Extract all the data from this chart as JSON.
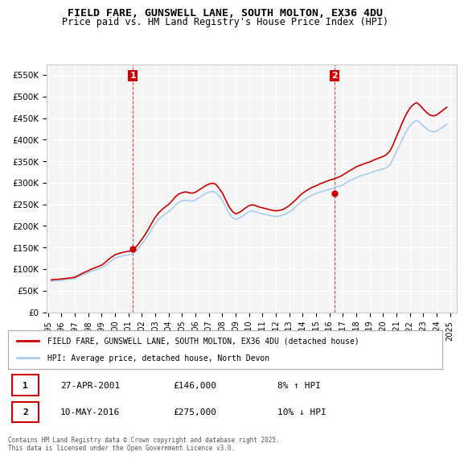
{
  "title_line1": "FIELD FARE, GUNSWELL LANE, SOUTH MOLTON, EX36 4DU",
  "title_line2": "Price paid vs. HM Land Registry's House Price Index (HPI)",
  "xlabel": "",
  "ylabel": "",
  "ylim": [
    0,
    575000
  ],
  "yticks": [
    0,
    50000,
    100000,
    150000,
    200000,
    250000,
    300000,
    350000,
    400000,
    450000,
    500000,
    550000
  ],
  "ytick_labels": [
    "£0",
    "£50K",
    "£100K",
    "£150K",
    "£200K",
    "£250K",
    "£300K",
    "£350K",
    "£400K",
    "£450K",
    "£500K",
    "£550K"
  ],
  "xtick_years": [
    1995,
    1996,
    1997,
    1998,
    1999,
    2000,
    2001,
    2002,
    2003,
    2004,
    2005,
    2006,
    2007,
    2008,
    2009,
    2010,
    2011,
    2012,
    2013,
    2014,
    2015,
    2016,
    2017,
    2018,
    2019,
    2020,
    2021,
    2022,
    2023,
    2024,
    2025
  ],
  "background_color": "#ffffff",
  "plot_background": "#f5f5f5",
  "grid_color": "#ffffff",
  "line1_color": "#cc0000",
  "line2_color": "#aaccee",
  "marker1_x": 2001.33,
  "marker1_y": 146000,
  "marker2_x": 2016.37,
  "marker2_y": 275000,
  "legend_label1": "FIELD FARE, GUNSWELL LANE, SOUTH MOLTON, EX36 4DU (detached house)",
  "legend_label2": "HPI: Average price, detached house, North Devon",
  "sale1_label": "1",
  "sale1_date": "27-APR-2001",
  "sale1_price": "£146,000",
  "sale1_hpi": "8% ↑ HPI",
  "sale2_label": "2",
  "sale2_date": "10-MAY-2016",
  "sale2_price": "£275,000",
  "sale2_hpi": "10% ↓ HPI",
  "footer": "Contains HM Land Registry data © Crown copyright and database right 2025.\nThis data is licensed under the Open Government Licence v3.0.",
  "hpi_data_x": [
    1995.25,
    1995.5,
    1995.75,
    1996.0,
    1996.25,
    1996.5,
    1996.75,
    1997.0,
    1997.25,
    1997.5,
    1997.75,
    1998.0,
    1998.25,
    1998.5,
    1998.75,
    1999.0,
    1999.25,
    1999.5,
    1999.75,
    2000.0,
    2000.25,
    2000.5,
    2000.75,
    2001.0,
    2001.25,
    2001.5,
    2001.75,
    2002.0,
    2002.25,
    2002.5,
    2002.75,
    2003.0,
    2003.25,
    2003.5,
    2003.75,
    2004.0,
    2004.25,
    2004.5,
    2004.75,
    2005.0,
    2005.25,
    2005.5,
    2005.75,
    2006.0,
    2006.25,
    2006.5,
    2006.75,
    2007.0,
    2007.25,
    2007.5,
    2007.75,
    2008.0,
    2008.25,
    2008.5,
    2008.75,
    2009.0,
    2009.25,
    2009.5,
    2009.75,
    2010.0,
    2010.25,
    2010.5,
    2010.75,
    2011.0,
    2011.25,
    2011.5,
    2011.75,
    2012.0,
    2012.25,
    2012.5,
    2012.75,
    2013.0,
    2013.25,
    2013.5,
    2013.75,
    2014.0,
    2014.25,
    2014.5,
    2014.75,
    2015.0,
    2015.25,
    2015.5,
    2015.75,
    2016.0,
    2016.25,
    2016.5,
    2016.75,
    2017.0,
    2017.25,
    2017.5,
    2017.75,
    2018.0,
    2018.25,
    2018.5,
    2018.75,
    2019.0,
    2019.25,
    2019.5,
    2019.75,
    2020.0,
    2020.25,
    2020.5,
    2020.75,
    2021.0,
    2021.25,
    2021.5,
    2021.75,
    2022.0,
    2022.25,
    2022.5,
    2022.75,
    2023.0,
    2023.25,
    2023.5,
    2023.75,
    2024.0,
    2024.25,
    2024.5,
    2024.75
  ],
  "hpi_data_y": [
    72000,
    73000,
    73500,
    74000,
    75000,
    76000,
    77000,
    78000,
    82000,
    86000,
    89000,
    92000,
    95000,
    98000,
    100000,
    103000,
    108000,
    114000,
    120000,
    125000,
    128000,
    130000,
    132000,
    133000,
    135000,
    140000,
    148000,
    158000,
    168000,
    180000,
    193000,
    205000,
    215000,
    222000,
    228000,
    233000,
    240000,
    248000,
    255000,
    258000,
    260000,
    258000,
    258000,
    260000,
    265000,
    270000,
    275000,
    278000,
    280000,
    278000,
    270000,
    260000,
    245000,
    230000,
    220000,
    215000,
    218000,
    222000,
    228000,
    233000,
    235000,
    233000,
    230000,
    228000,
    227000,
    225000,
    223000,
    222000,
    223000,
    225000,
    228000,
    232000,
    238000,
    245000,
    252000,
    258000,
    263000,
    268000,
    272000,
    275000,
    278000,
    280000,
    283000,
    285000,
    287000,
    290000,
    292000,
    295000,
    300000,
    305000,
    308000,
    312000,
    315000,
    318000,
    320000,
    322000,
    325000,
    328000,
    330000,
    332000,
    335000,
    342000,
    355000,
    372000,
    388000,
    405000,
    420000,
    432000,
    440000,
    445000,
    440000,
    432000,
    425000,
    420000,
    418000,
    420000,
    425000,
    430000,
    435000
  ],
  "price_data_x": [
    1995.25,
    1995.5,
    1995.75,
    1996.0,
    1996.25,
    1996.5,
    1996.75,
    1997.0,
    1997.25,
    1997.5,
    1997.75,
    1998.0,
    1998.25,
    1998.5,
    1998.75,
    1999.0,
    1999.25,
    1999.5,
    1999.75,
    2000.0,
    2000.25,
    2000.5,
    2000.75,
    2001.0,
    2001.25,
    2001.5,
    2001.75,
    2002.0,
    2002.25,
    2002.5,
    2002.75,
    2003.0,
    2003.25,
    2003.5,
    2003.75,
    2004.0,
    2004.25,
    2004.5,
    2004.75,
    2005.0,
    2005.25,
    2005.5,
    2005.75,
    2006.0,
    2006.25,
    2006.5,
    2006.75,
    2007.0,
    2007.25,
    2007.5,
    2007.75,
    2008.0,
    2008.25,
    2008.5,
    2008.75,
    2009.0,
    2009.25,
    2009.5,
    2009.75,
    2010.0,
    2010.25,
    2010.5,
    2010.75,
    2011.0,
    2011.25,
    2011.5,
    2011.75,
    2012.0,
    2012.25,
    2012.5,
    2012.75,
    2013.0,
    2013.25,
    2013.5,
    2013.75,
    2014.0,
    2014.25,
    2014.5,
    2014.75,
    2015.0,
    2015.25,
    2015.5,
    2015.75,
    2016.0,
    2016.25,
    2016.5,
    2016.75,
    2017.0,
    2017.25,
    2017.5,
    2017.75,
    2018.0,
    2018.25,
    2018.5,
    2018.75,
    2019.0,
    2019.25,
    2019.5,
    2019.75,
    2020.0,
    2020.25,
    2020.5,
    2020.75,
    2021.0,
    2021.25,
    2021.5,
    2021.75,
    2022.0,
    2022.25,
    2022.5,
    2022.75,
    2023.0,
    2023.25,
    2023.5,
    2023.75,
    2024.0,
    2024.25,
    2024.5,
    2024.75
  ],
  "price_data_y": [
    75000,
    76000,
    76500,
    77000,
    78000,
    79000,
    80000,
    81000,
    85000,
    89000,
    93000,
    96000,
    100000,
    103000,
    106000,
    109000,
    115000,
    122000,
    128000,
    133000,
    136000,
    138000,
    140000,
    141000,
    143000,
    149000,
    158000,
    169000,
    180000,
    193000,
    207000,
    220000,
    230000,
    238000,
    244000,
    250000,
    258000,
    267000,
    274000,
    277000,
    279000,
    277000,
    276000,
    278000,
    283000,
    288000,
    293000,
    297000,
    299000,
    297000,
    288000,
    277000,
    261000,
    245000,
    234000,
    228000,
    231000,
    236000,
    242000,
    247000,
    249000,
    247000,
    244000,
    242000,
    240000,
    238000,
    236000,
    235000,
    236000,
    238000,
    242000,
    247000,
    254000,
    261000,
    269000,
    276000,
    281000,
    286000,
    290000,
    293000,
    297000,
    300000,
    303000,
    306000,
    308000,
    311000,
    314000,
    318000,
    323000,
    328000,
    332000,
    337000,
    340000,
    343000,
    346000,
    348000,
    352000,
    355000,
    358000,
    361000,
    365000,
    373000,
    388000,
    407000,
    425000,
    444000,
    460000,
    473000,
    481000,
    486000,
    480000,
    471000,
    463000,
    457000,
    455000,
    457000,
    463000,
    469000,
    475000
  ],
  "vline1_x": 2001.33,
  "vline2_x": 2016.37
}
